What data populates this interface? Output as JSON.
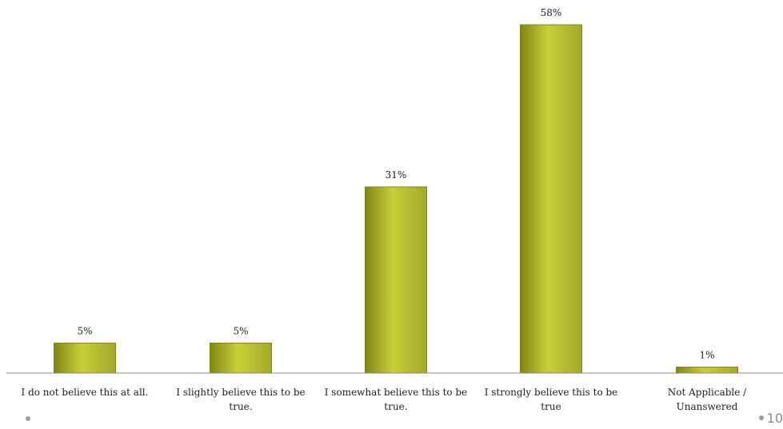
{
  "page_number": "10",
  "colors": {
    "bar_fill": "#a2a82a",
    "bar_top": "#c9cf36",
    "bar_edge": "#7f8617"
  },
  "chart_data": {
    "type": "bar",
    "title": "",
    "xlabel": "",
    "ylabel": "",
    "categories": [
      "I do not believe this at all.",
      "I slightly believe this to be true.",
      "I somewhat believe this to be true.",
      "I strongly believe this to be true",
      "Not Applicable / Unanswered"
    ],
    "category_lines": [
      [
        "I do not believe this at all."
      ],
      [
        "I slightly believe this to be",
        "true."
      ],
      [
        "I somewhat believe this to be",
        "true."
      ],
      [
        "I strongly believe this to be",
        "true"
      ],
      [
        "Not Applicable /",
        "Unanswered"
      ]
    ],
    "values": [
      5,
      5,
      31,
      58,
      1
    ],
    "value_labels": [
      "5%",
      "5%",
      "31%",
      "58%",
      "1%"
    ],
    "ylim": [
      0,
      58
    ],
    "grid": false,
    "legend": "none"
  }
}
